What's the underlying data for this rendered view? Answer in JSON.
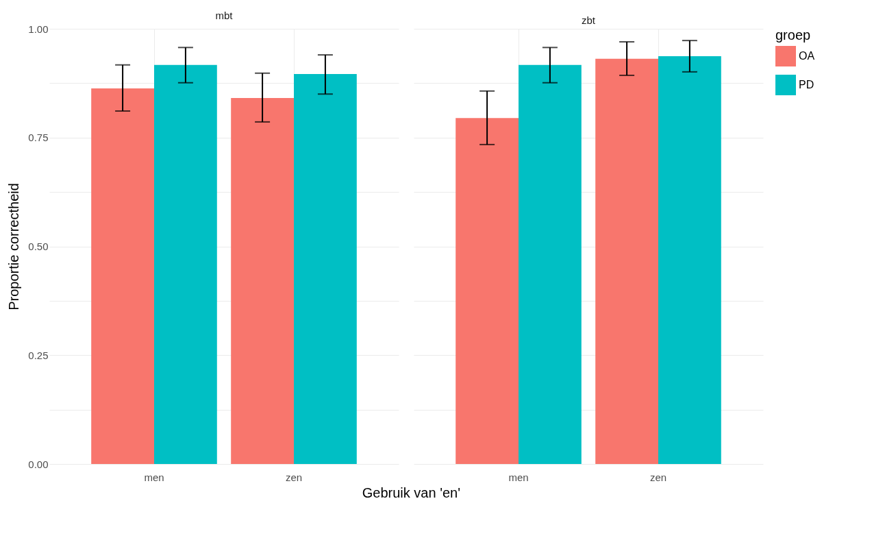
{
  "chart_data": [
    {
      "type": "bar",
      "title": "mbt",
      "xlabel": "Gebruik van 'en'",
      "ylabel": "Proportie correctheid",
      "categories": [
        "men",
        "zen"
      ],
      "series": [
        {
          "name": "OA",
          "color": "#f8766d",
          "values": [
            0.863,
            0.841
          ],
          "errors": [
            [
              0.811,
              0.917
            ],
            [
              0.786,
              0.898
            ]
          ]
        },
        {
          "name": "PD",
          "color": "#00bfc4",
          "values": [
            0.917,
            0.896
          ],
          "errors": [
            [
              0.876,
              0.957
            ],
            [
              0.85,
              0.94
            ]
          ]
        }
      ],
      "ylim": [
        0,
        1
      ],
      "yticks": [
        {
          "value": 0,
          "label": "0.00"
        },
        {
          "value": 0.125,
          "label": null
        },
        0.25,
        {
          "value": 0.375,
          "label": null
        },
        {
          "value": 0.5,
          "label": "0.50"
        },
        {
          "value": 0.625,
          "label": null
        },
        0.75,
        {
          "value": 0.875,
          "label": null
        },
        {
          "value": 1,
          "label": "1.00"
        }
      ],
      "grid": true,
      "legend": "right"
    },
    {
      "type": "bar",
      "title": "zbt",
      "legend_title": "groep",
      "categories": [
        "men",
        "zen"
      ],
      "series": [
        {
          "name": "OA",
          "color": "#f8766d",
          "values": [
            0.795,
            0.931
          ],
          "errors": [
            [
              0.734,
              0.857
            ],
            [
              0.893,
              0.97
            ]
          ]
        },
        {
          "name": "PD",
          "color": "#00bfc4",
          "values": [
            0.917,
            0.937
          ],
          "errors": [
            [
              0.876,
              0.957
            ],
            [
              0.901,
              0.973
            ]
          ]
        }
      ],
      "ylim": [
        0,
        1
      ],
      "yticks": [
        0,
        0.125,
        0.25,
        0.375,
        0.5,
        0.625,
        0.75,
        0.875,
        1
      ],
      "grid": true,
      "legend": "right",
      "tick_labels": "x"
    }
  ]
}
